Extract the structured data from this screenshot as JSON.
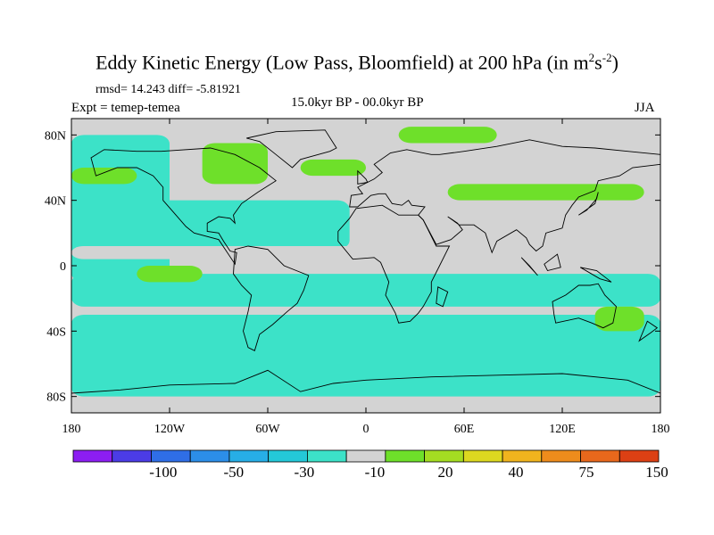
{
  "title": {
    "main": "Eddy Kinetic Energy (Low Pass, Bloomfield) at 200 hPa (in m",
    "sup1": "2",
    "mid": "s",
    "sup2": "-2",
    "end": ")"
  },
  "header": {
    "stats": "rmsd= 14.243 diff= -5.81921",
    "experiment": "Expt = temep-temea",
    "period": "15.0kyr BP - 00.0kyr BP",
    "season": "JJA"
  },
  "chart_data": {
    "type": "heatmap",
    "subtype": "filled-contour-map",
    "projection": "cylindrical-equidistant",
    "x_axis": {
      "range": [
        -180,
        180
      ],
      "ticks": [
        -180,
        -120,
        -60,
        0,
        60,
        120,
        180
      ],
      "tick_labels": [
        "180",
        "120W",
        "60W",
        "0",
        "60E",
        "120E",
        "180"
      ]
    },
    "y_axis": {
      "range": [
        -90,
        90
      ],
      "ticks": [
        80,
        40,
        0,
        -40,
        -80
      ],
      "tick_labels": [
        "80N",
        "40N",
        "0",
        "40S",
        "80S"
      ]
    },
    "colorbar": {
      "labels": [
        "-100",
        "-50",
        "-30",
        "-10",
        "20",
        "40",
        "75",
        "150"
      ],
      "colors": [
        "#8c1ef2",
        "#4b3ce6",
        "#2f6ee6",
        "#2c8ee8",
        "#27aee6",
        "#24c8d8",
        "#3ce2c8",
        "#d3d3d3",
        "#6ee02a",
        "#a4dc22",
        "#dcd820",
        "#f0b41e",
        "#ee8c1c",
        "#e8681c",
        "#dc4014"
      ],
      "neutral_color": "#d3d3d3"
    },
    "regions": [
      {
        "level": "-30",
        "color": "#3ce2c8",
        "lon": -180,
        "lat": 80,
        "w": 60,
        "h": 90
      },
      {
        "level": "-30",
        "color": "#3ce2c8",
        "lon": -180,
        "lat": 40,
        "w": 170,
        "h": 30
      },
      {
        "level": "-30",
        "color": "#3ce2c8",
        "lon": -180,
        "lat": -5,
        "w": 360,
        "h": 20
      },
      {
        "level": "-30",
        "color": "#3ce2c8",
        "lon": -180,
        "lat": -30,
        "w": 360,
        "h": 50
      },
      {
        "level": "-10",
        "color": "#d3d3d3",
        "lon": -180,
        "lat": 12,
        "w": 360,
        "h": 8
      },
      {
        "level": "20",
        "color": "#6ee02a",
        "lon": -180,
        "lat": 60,
        "w": 40,
        "h": 10
      },
      {
        "level": "20",
        "color": "#6ee02a",
        "lon": -100,
        "lat": 75,
        "w": 40,
        "h": 25
      },
      {
        "level": "20",
        "color": "#6ee02a",
        "lon": -40,
        "lat": 65,
        "w": 40,
        "h": 10
      },
      {
        "level": "20",
        "color": "#6ee02a",
        "lon": 20,
        "lat": 85,
        "w": 60,
        "h": 10
      },
      {
        "level": "20",
        "color": "#6ee02a",
        "lon": 50,
        "lat": 50,
        "w": 120,
        "h": 10
      },
      {
        "level": "20",
        "color": "#6ee02a",
        "lon": -140,
        "lat": 0,
        "w": 40,
        "h": 10
      },
      {
        "level": "20",
        "color": "#6ee02a",
        "lon": 140,
        "lat": -25,
        "w": 30,
        "h": 15
      }
    ]
  }
}
